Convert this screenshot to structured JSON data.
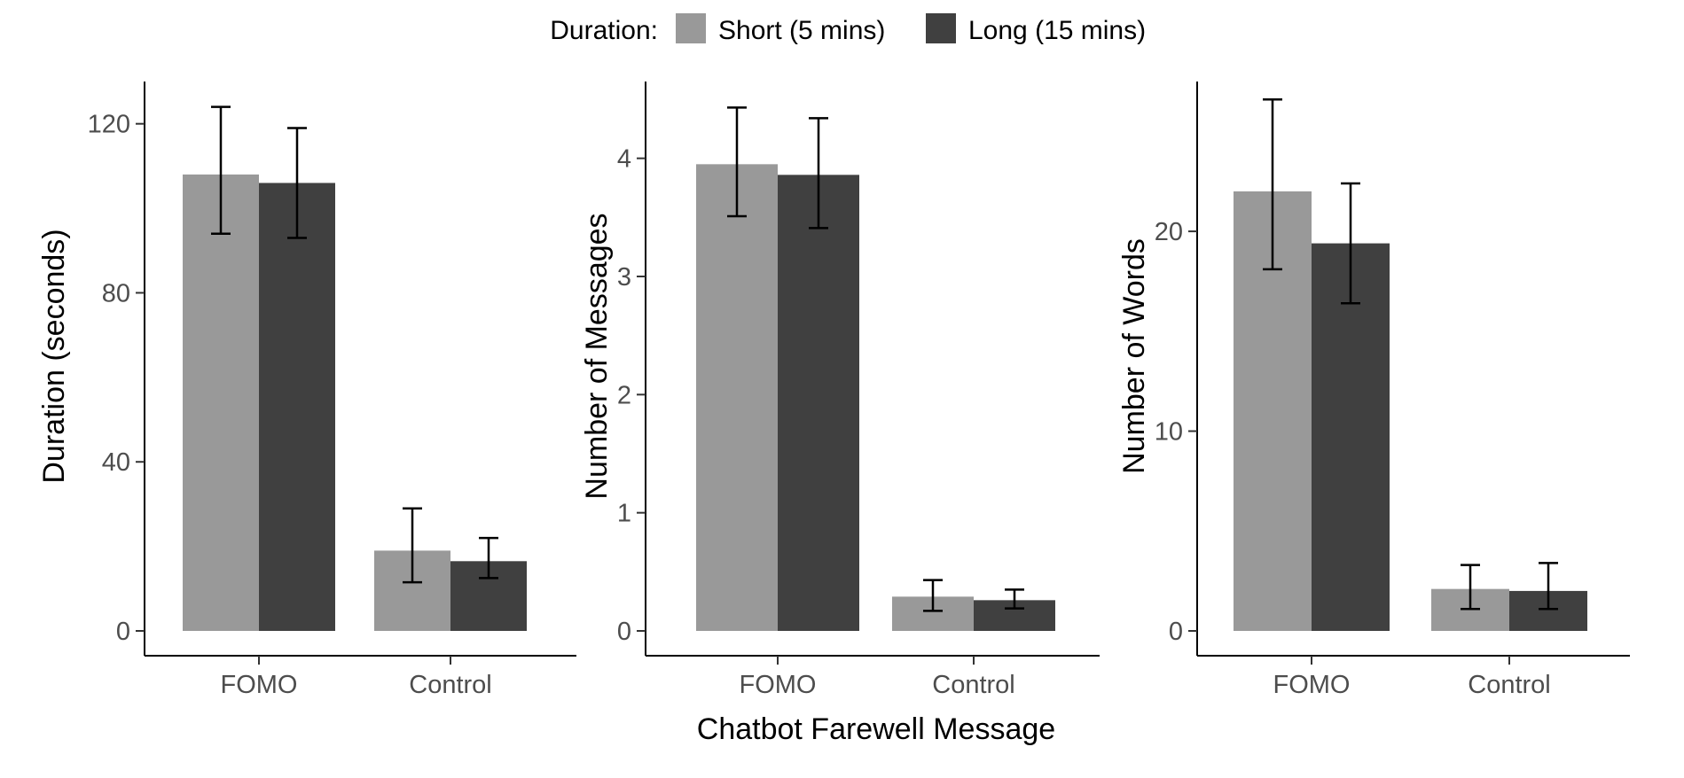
{
  "legend": {
    "title": "Duration:",
    "items": [
      {
        "label": "Short (5 mins)",
        "color": "#999999"
      },
      {
        "label": "Long (15 mins)",
        "color": "#404040"
      }
    ]
  },
  "shared_xlabel": "Chatbot Farewell Message",
  "chart_data": [
    {
      "type": "bar",
      "categories": [
        "FOMO",
        "Control"
      ],
      "series": [
        {
          "name": "Short (5 mins)",
          "values": [
            108,
            19
          ],
          "error_low": [
            94,
            11.5
          ],
          "error_high": [
            124,
            29
          ]
        },
        {
          "name": "Long (15 mins)",
          "values": [
            106,
            16.5
          ],
          "error_low": [
            93,
            12.5
          ],
          "error_high": [
            119,
            22
          ]
        }
      ],
      "ylabel": "Duration (seconds)",
      "ylim": [
        0,
        130
      ],
      "yticks": [
        0,
        40,
        80,
        120
      ],
      "grid": false
    },
    {
      "type": "bar",
      "categories": [
        "FOMO",
        "Control"
      ],
      "series": [
        {
          "name": "Short (5 mins)",
          "values": [
            3.95,
            0.29
          ],
          "error_low": [
            3.51,
            0.17
          ],
          "error_high": [
            4.43,
            0.43
          ]
        },
        {
          "name": "Long (15 mins)",
          "values": [
            3.86,
            0.26
          ],
          "error_low": [
            3.41,
            0.19
          ],
          "error_high": [
            4.34,
            0.35
          ]
        }
      ],
      "ylabel": "Number of Messages",
      "ylim": [
        0,
        4.65
      ],
      "yticks": [
        0,
        1,
        2,
        3,
        4
      ],
      "grid": false
    },
    {
      "type": "bar",
      "categories": [
        "FOMO",
        "Control"
      ],
      "series": [
        {
          "name": "Short (5 mins)",
          "values": [
            22,
            2.1
          ],
          "error_low": [
            18.1,
            1.1
          ],
          "error_high": [
            26.6,
            3.3
          ]
        },
        {
          "name": "Long (15 mins)",
          "values": [
            19.4,
            2
          ],
          "error_low": [
            16.4,
            1.1
          ],
          "error_high": [
            22.4,
            3.4
          ]
        }
      ],
      "ylabel": "Number of Words",
      "ylim": [
        0,
        27.5
      ],
      "yticks": [
        0,
        10,
        20
      ],
      "grid": false
    }
  ]
}
